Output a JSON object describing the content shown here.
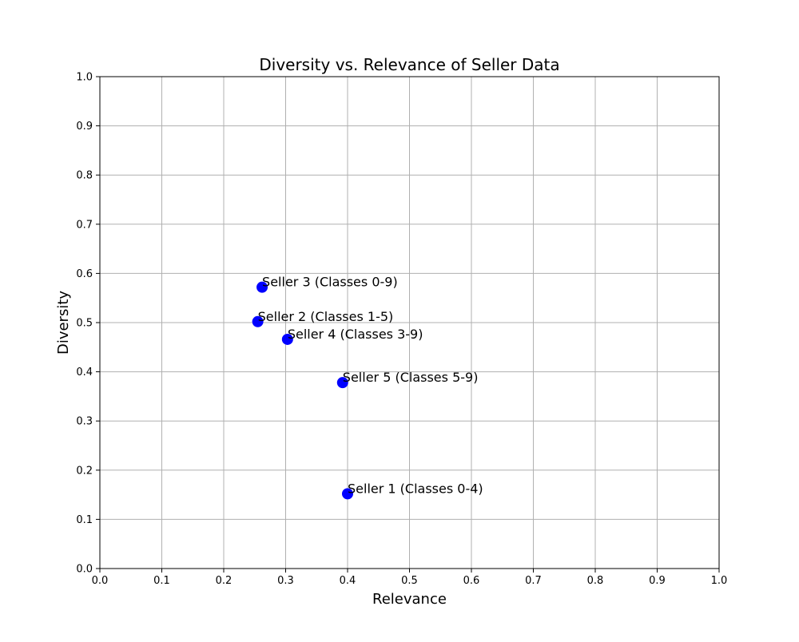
{
  "chart_data": {
    "type": "scatter",
    "title": "Diversity vs. Relevance of Seller Data",
    "xlabel": "Relevance",
    "ylabel": "Diversity",
    "xlim": [
      0.0,
      1.0
    ],
    "ylim": [
      0.0,
      1.0
    ],
    "x_ticks": [
      "0.0",
      "0.1",
      "0.2",
      "0.3",
      "0.4",
      "0.5",
      "0.6",
      "0.7",
      "0.8",
      "0.9",
      "1.0"
    ],
    "y_ticks": [
      "0.0",
      "0.1",
      "0.2",
      "0.3",
      "0.4",
      "0.5",
      "0.6",
      "0.7",
      "0.8",
      "0.9",
      "1.0"
    ],
    "grid": true,
    "marker_color": "#0000ff",
    "points": [
      {
        "label": "Seller 1 (Classes 0-4)",
        "x": 0.4,
        "y": 0.152
      },
      {
        "label": "Seller 2 (Classes 1-5)",
        "x": 0.255,
        "y": 0.502
      },
      {
        "label": "Seller 3 (Classes 0-9)",
        "x": 0.262,
        "y": 0.572
      },
      {
        "label": "Seller 4 (Classes 3-9)",
        "x": 0.303,
        "y": 0.466
      },
      {
        "label": "Seller 5 (Classes 5-9)",
        "x": 0.392,
        "y": 0.378
      }
    ]
  }
}
